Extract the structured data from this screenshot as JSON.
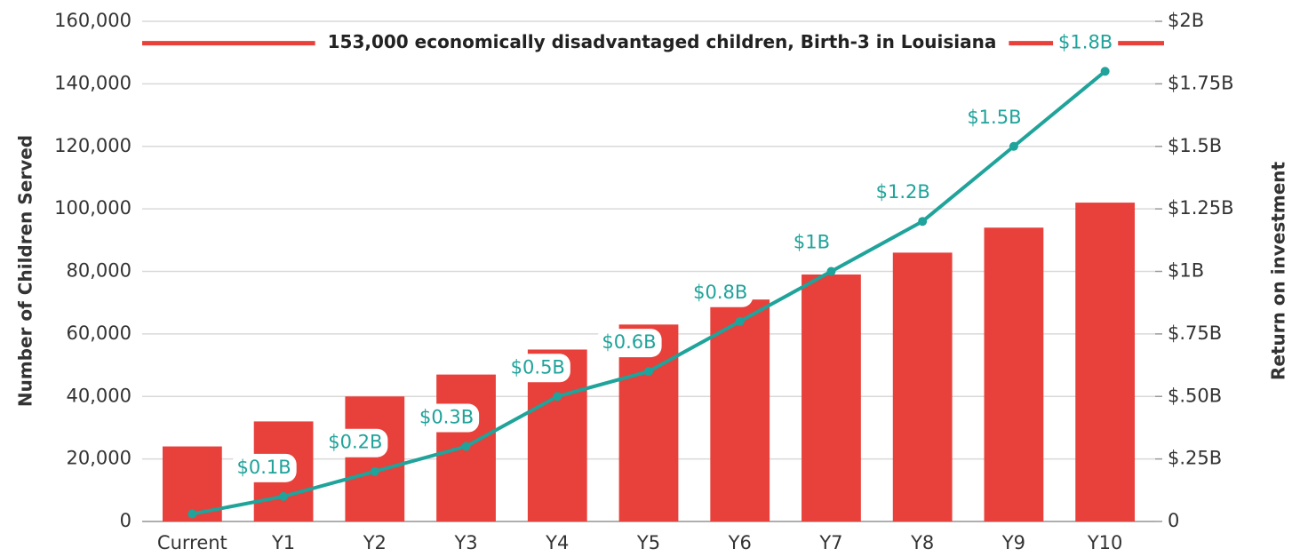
{
  "chart_data": {
    "type": "bar",
    "y_label": "Number of Children Served",
    "y2_label": "Return on investment",
    "categories": [
      "Current",
      "Y1",
      "Y2",
      "Y3",
      "Y4",
      "Y5",
      "Y6",
      "Y7",
      "Y8",
      "Y9",
      "Y10"
    ],
    "series": [
      {
        "color": "#e8403a",
        "values": [
          24000,
          32000,
          40000,
          47000,
          55000,
          63000,
          71000,
          79000,
          86000,
          94000,
          102000
        ]
      },
      {
        "type": "line",
        "axis": "y2",
        "color": "#1fa39a",
        "values": [
          0.03,
          0.1,
          0.2,
          0.3,
          0.5,
          0.6,
          0.8,
          1,
          1.2,
          1.5,
          1.8
        ],
        "value_labels": [
          null,
          "$0.1B",
          "$0.2B",
          "$0.3B",
          "$0.5B",
          "$0.6B",
          "$0.8B",
          "$1B",
          "$1.2B",
          "$1.5B",
          "$1.8B"
        ]
      }
    ],
    "ylim": [
      0,
      160000
    ],
    "yticks": [
      0,
      {
        "value": 20000,
        "label": "20,000"
      },
      {
        "value": 40000,
        "label": "40,000"
      },
      {
        "value": 60000,
        "label": "60,000"
      },
      {
        "value": 80000,
        "label": "80,000"
      },
      {
        "value": 100000,
        "label": "100,000"
      },
      {
        "value": 120000,
        "label": "120,000"
      },
      {
        "value": 140000,
        "label": "140,000"
      },
      {
        "value": 160000,
        "label": "160,000"
      }
    ],
    "y2lim": [
      0,
      2
    ],
    "y2ticks": [
      0,
      {
        "value": 0.25,
        "label": "$.25B"
      },
      {
        "value": 0.5,
        "label": "$.50B"
      },
      {
        "value": 0.75,
        "label": "$.75B"
      },
      {
        "value": 1,
        "label": "$1B"
      },
      {
        "value": 1.25,
        "label": "$1.25B"
      },
      {
        "value": 1.5,
        "label": "$1.5B"
      },
      {
        "value": 1.75,
        "label": "$1.75B"
      },
      {
        "value": 2,
        "label": "$2B"
      }
    ],
    "grid": true,
    "annotation": {
      "text": "153,000 economically disadvantaged children, Birth-3 in Louisiana",
      "value": 153000,
      "color": "#e8403a"
    }
  }
}
